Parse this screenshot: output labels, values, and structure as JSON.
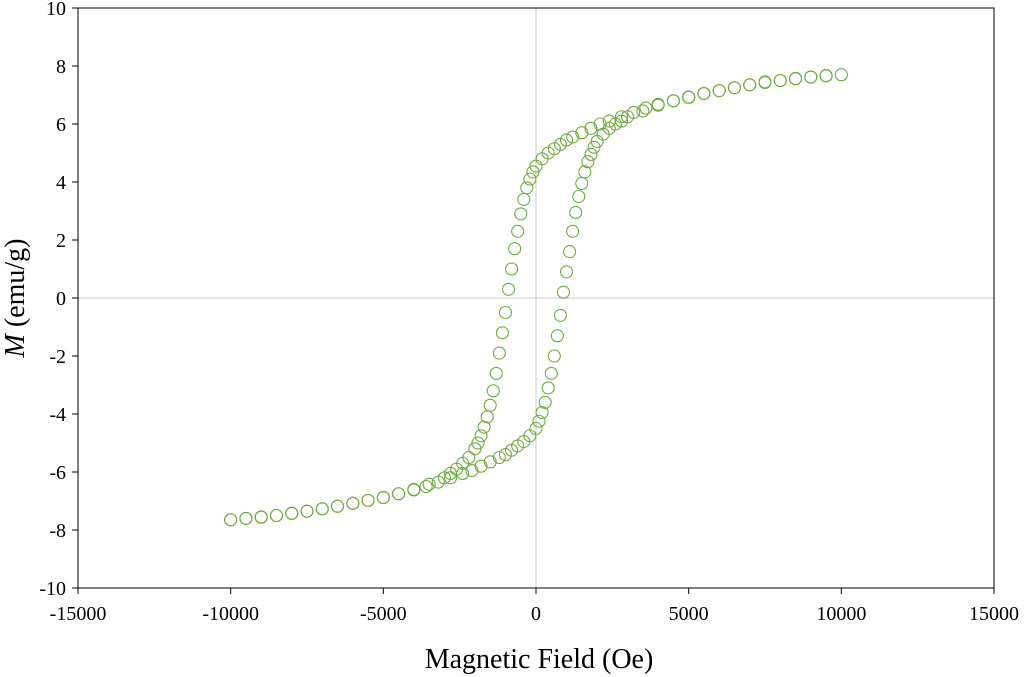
{
  "chart_data": {
    "type": "scatter",
    "title": "",
    "xlabel": "Magnetic Field (Oe)",
    "ylabel_italic": "M",
    "ylabel_rest": " (emu/g)",
    "xlim": [
      -15000,
      15000
    ],
    "ylim": [
      -10,
      10
    ],
    "xticks": [
      -15000,
      -10000,
      -5000,
      0,
      5000,
      10000,
      15000
    ],
    "yticks": [
      -10,
      -8,
      -6,
      -4,
      -2,
      0,
      2,
      4,
      6,
      8,
      10
    ],
    "x_tick_labels": [
      "-15000",
      "-10000",
      "-5000",
      "0",
      "5000",
      "10000",
      "15000"
    ],
    "y_tick_labels": [
      "-10",
      "-8",
      "-6",
      "-4",
      "-2",
      "0",
      "2",
      "4",
      "6",
      "8",
      "10"
    ],
    "grid": false,
    "zero_lines": true,
    "marker": "open-circle",
    "color": "#6aaa3a",
    "series": [
      {
        "points": [
          [
            -10000,
            -7.65
          ],
          [
            -9500,
            -7.6
          ],
          [
            -9000,
            -7.55
          ],
          [
            -8500,
            -7.5
          ],
          [
            -8000,
            -7.42
          ],
          [
            -7500,
            -7.35
          ],
          [
            -7000,
            -7.27
          ],
          [
            -6500,
            -7.18
          ],
          [
            -6000,
            -7.08
          ],
          [
            -5500,
            -6.98
          ],
          [
            -5000,
            -6.88
          ],
          [
            -4500,
            -6.75
          ],
          [
            -4000,
            -6.6
          ],
          [
            -3500,
            -6.42
          ],
          [
            -3000,
            -6.2
          ],
          [
            -2800,
            -6.05
          ],
          [
            -2600,
            -5.9
          ],
          [
            -2400,
            -5.7
          ],
          [
            -2200,
            -5.5
          ],
          [
            -2000,
            -5.2
          ],
          [
            -1900,
            -5.0
          ],
          [
            -1800,
            -4.75
          ],
          [
            -1700,
            -4.45
          ],
          [
            -1600,
            -4.1
          ],
          [
            -1500,
            -3.7
          ],
          [
            -1400,
            -3.2
          ],
          [
            -1300,
            -2.6
          ],
          [
            -1200,
            -1.9
          ],
          [
            -1100,
            -1.2
          ],
          [
            -1000,
            -0.5
          ],
          [
            -900,
            0.3
          ],
          [
            -800,
            1.0
          ],
          [
            -700,
            1.7
          ],
          [
            -600,
            2.3
          ],
          [
            -500,
            2.9
          ],
          [
            -400,
            3.4
          ],
          [
            -300,
            3.8
          ],
          [
            -200,
            4.1
          ],
          [
            -100,
            4.35
          ],
          [
            0,
            4.55
          ],
          [
            200,
            4.8
          ],
          [
            400,
            5.0
          ],
          [
            600,
            5.15
          ],
          [
            800,
            5.3
          ],
          [
            1000,
            5.45
          ],
          [
            1200,
            5.55
          ],
          [
            1500,
            5.7
          ],
          [
            1800,
            5.85
          ],
          [
            2100,
            6.0
          ],
          [
            2400,
            6.1
          ],
          [
            2800,
            6.25
          ],
          [
            3200,
            6.4
          ],
          [
            3600,
            6.55
          ],
          [
            4000,
            6.68
          ],
          [
            4500,
            6.8
          ],
          [
            5000,
            6.92
          ],
          [
            5500,
            7.05
          ],
          [
            6000,
            7.15
          ],
          [
            6500,
            7.25
          ],
          [
            7000,
            7.35
          ],
          [
            7500,
            7.45
          ],
          [
            8000,
            7.5
          ],
          [
            8500,
            7.57
          ],
          [
            9000,
            7.62
          ],
          [
            9500,
            7.67
          ],
          [
            10000,
            7.7
          ],
          [
            9500,
            7.66
          ],
          [
            9000,
            7.62
          ],
          [
            8500,
            7.56
          ],
          [
            8000,
            7.5
          ],
          [
            7500,
            7.43
          ],
          [
            7000,
            7.35
          ],
          [
            6500,
            7.25
          ],
          [
            6000,
            7.15
          ],
          [
            5500,
            7.05
          ],
          [
            5000,
            6.93
          ],
          [
            4500,
            6.8
          ],
          [
            4000,
            6.65
          ],
          [
            3500,
            6.45
          ],
          [
            3000,
            6.25
          ],
          [
            2800,
            6.1
          ],
          [
            2600,
            6.0
          ],
          [
            2400,
            5.85
          ],
          [
            2200,
            5.65
          ],
          [
            2000,
            5.4
          ],
          [
            1900,
            5.2
          ],
          [
            1800,
            4.95
          ],
          [
            1700,
            4.7
          ],
          [
            1600,
            4.35
          ],
          [
            1500,
            3.95
          ],
          [
            1400,
            3.5
          ],
          [
            1300,
            2.95
          ],
          [
            1200,
            2.3
          ],
          [
            1100,
            1.6
          ],
          [
            1000,
            0.9
          ],
          [
            900,
            0.2
          ],
          [
            800,
            -0.6
          ],
          [
            700,
            -1.3
          ],
          [
            600,
            -2.0
          ],
          [
            500,
            -2.6
          ],
          [
            400,
            -3.1
          ],
          [
            300,
            -3.6
          ],
          [
            200,
            -3.95
          ],
          [
            100,
            -4.25
          ],
          [
            0,
            -4.5
          ],
          [
            -200,
            -4.75
          ],
          [
            -400,
            -4.95
          ],
          [
            -600,
            -5.1
          ],
          [
            -800,
            -5.25
          ],
          [
            -1000,
            -5.4
          ],
          [
            -1200,
            -5.5
          ],
          [
            -1500,
            -5.65
          ],
          [
            -1800,
            -5.8
          ],
          [
            -2100,
            -5.95
          ],
          [
            -2400,
            -6.05
          ],
          [
            -2800,
            -6.2
          ],
          [
            -3200,
            -6.35
          ],
          [
            -3600,
            -6.5
          ],
          [
            -4000,
            -6.62
          ],
          [
            -4500,
            -6.75
          ],
          [
            -5000,
            -6.88
          ],
          [
            -5500,
            -6.98
          ],
          [
            -6000,
            -7.08
          ],
          [
            -6500,
            -7.18
          ],
          [
            -7000,
            -7.27
          ],
          [
            -7500,
            -7.35
          ],
          [
            -8000,
            -7.43
          ],
          [
            -8500,
            -7.5
          ],
          [
            -9000,
            -7.56
          ],
          [
            -9500,
            -7.6
          ],
          [
            -10000,
            -7.65
          ]
        ]
      }
    ]
  }
}
